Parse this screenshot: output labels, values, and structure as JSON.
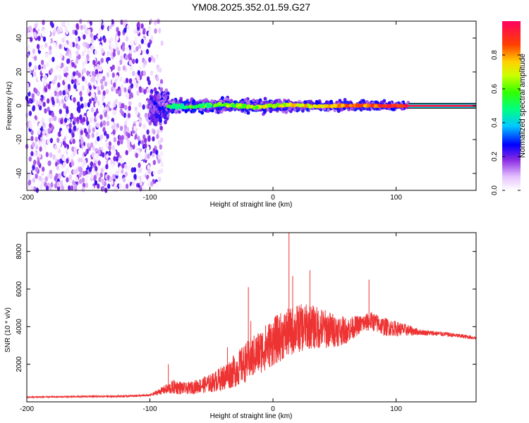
{
  "title": "YM08.2025.352.01.59.G27",
  "chart_data": [
    {
      "type": "heatmap",
      "name": "spectrogram",
      "xlabel": "Height of straight line (km)",
      "ylabel": "Frequency (Hz)",
      "xlim": [
        -200,
        165
      ],
      "ylim": [
        -50,
        50
      ],
      "xticks": [
        -200,
        -100,
        0,
        100
      ],
      "yticks": [
        -40,
        -20,
        0,
        20,
        40
      ],
      "colorbar": {
        "label": "Normalized spectral amplitude",
        "range": [
          0.0,
          1.0
        ],
        "ticks": [
          0.0,
          0.2,
          0.4,
          0.6,
          0.8
        ],
        "tick_labels": [
          "0.0",
          "0.2",
          "0.4",
          "0.6",
          "0.8"
        ]
      },
      "features": {
        "noise_region_x": [
          -200,
          -100
        ],
        "noise_amplitude": 0.15,
        "signal_line_freq": 0,
        "signal_line_x": [
          110,
          165
        ],
        "signal_line_amplitude": 0.95,
        "scatter_band_x": [
          -90,
          110
        ],
        "scatter_band_halfwidth_hz": 5,
        "transition_blob_x": [
          -100,
          -85
        ],
        "transition_blob_halfwidth_hz": 15
      }
    },
    {
      "type": "line",
      "name": "snr",
      "xlabel": "Height of straight line (km)",
      "ylabel": "SNR (10 * v/v)",
      "xlim": [
        -200,
        165
      ],
      "ylim": [
        0,
        9000
      ],
      "xticks": [
        -200,
        -100,
        0,
        100
      ],
      "yticks": [
        2000,
        4000,
        6000,
        8000
      ],
      "color": "#ee3333",
      "envelope": {
        "x": [
          -200,
          -120,
          -100,
          -90,
          -80,
          -70,
          -50,
          -40,
          -30,
          -20,
          -10,
          0,
          10,
          20,
          30,
          40,
          50,
          60,
          70,
          80,
          90,
          100,
          110,
          120,
          140,
          165
        ],
        "base": [
          250,
          300,
          350,
          600,
          800,
          700,
          1000,
          1300,
          1700,
          2200,
          2700,
          3200,
          3600,
          3900,
          4000,
          3900,
          3800,
          3800,
          4100,
          4300,
          4000,
          3900,
          3800,
          3700,
          3600,
          3400
        ],
        "noise": [
          30,
          50,
          60,
          200,
          400,
          300,
          500,
          700,
          900,
          1100,
          1200,
          1300,
          1300,
          1300,
          1200,
          1100,
          900,
          700,
          500,
          500,
          500,
          400,
          300,
          150,
          120,
          100
        ]
      },
      "spikes": [
        {
          "x": -85,
          "y": 2000
        },
        {
          "x": -37,
          "y": 2900
        },
        {
          "x": -20,
          "y": 6100
        },
        {
          "x": -18,
          "y": 4300
        },
        {
          "x": 13,
          "y": 9000
        },
        {
          "x": 16,
          "y": 6700
        },
        {
          "x": 30,
          "y": 7000
        },
        {
          "x": 78,
          "y": 6500
        }
      ]
    }
  ]
}
